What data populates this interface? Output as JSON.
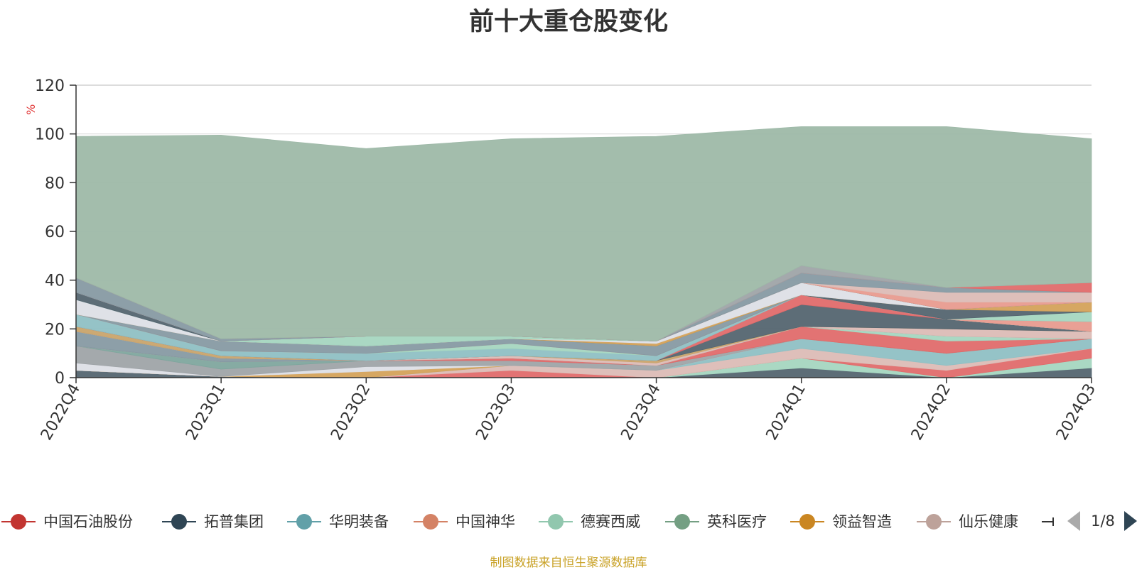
{
  "title": "前十大重仓股变化",
  "footer": "制图数据来自恒生聚源数据库",
  "legend": {
    "page_indicator": "1/8",
    "items": [
      {
        "name": "中国石油股份",
        "color": "#c23531"
      },
      {
        "name": "拓普集团",
        "color": "#2f4554"
      },
      {
        "name": "华明装备",
        "color": "#61a0a8"
      },
      {
        "name": "中国神华",
        "color": "#d48265"
      },
      {
        "name": "德赛西威",
        "color": "#91c7ae"
      },
      {
        "name": "英科医疗",
        "color": "#749f83"
      },
      {
        "name": "领益智造",
        "color": "#ca8622"
      },
      {
        "name": "仙乐健康",
        "color": "#bda29a"
      }
    ]
  },
  "chart_data": {
    "type": "area",
    "stacked": true,
    "title": "前十大重仓股变化",
    "ylabel": "%",
    "ylim": [
      0,
      120
    ],
    "yticks": [
      0,
      20,
      40,
      60,
      80,
      100,
      120
    ],
    "grid": true,
    "categories": [
      "2022Q4",
      "2023Q1",
      "2023Q2",
      "2023Q3",
      "2023Q4",
      "2024Q1",
      "2024Q2",
      "2024Q3"
    ],
    "series": [
      {
        "color": "#546570",
        "values": [
          3,
          0.5,
          0,
          0,
          0,
          4,
          0,
          4
        ]
      },
      {
        "color": "#a5d6c0",
        "values": [
          0,
          0,
          0,
          0,
          0,
          4,
          0,
          4
        ]
      },
      {
        "color": "#e06b6b",
        "values": [
          0,
          0,
          0,
          3,
          0,
          0,
          3,
          4
        ]
      },
      {
        "color": "#dcbcb6",
        "values": [
          0,
          0,
          0,
          2,
          3,
          4,
          2,
          0
        ]
      },
      {
        "color": "#8fc0c4",
        "values": [
          0,
          0,
          0,
          0,
          0,
          4,
          5,
          4
        ]
      },
      {
        "color": "#d4a25a",
        "values": [
          0,
          0,
          2.5,
          0,
          0,
          0,
          0,
          0
        ]
      },
      {
        "color": "#dddfe6",
        "values": [
          3,
          0,
          2,
          0,
          0,
          0,
          0,
          0
        ]
      },
      {
        "color": "#9fa4a8",
        "values": [
          7,
          3,
          2.5,
          2,
          2,
          0,
          0,
          0
        ]
      },
      {
        "color": "#7fa69e",
        "values": [
          0,
          3,
          0,
          0,
          0,
          0,
          0,
          0
        ]
      },
      {
        "color": "#e06b6b",
        "values": [
          0,
          0,
          0,
          1,
          0,
          5,
          5,
          0
        ]
      },
      {
        "color": "#a5d6c0",
        "values": [
          0,
          0,
          0,
          0,
          0,
          0,
          2,
          0
        ]
      },
      {
        "color": "#879aa3",
        "values": [
          6,
          1.5,
          0,
          0,
          0,
          0,
          0,
          0
        ]
      },
      {
        "color": "#dcbcb6",
        "values": [
          0,
          0,
          0,
          1,
          1,
          0,
          3,
          3
        ]
      },
      {
        "color": "#c9a46c",
        "values": [
          2,
          1,
          0,
          0,
          1,
          0,
          0,
          0
        ]
      },
      {
        "color": "#546570",
        "values": [
          0,
          0,
          0,
          0,
          0,
          9,
          4,
          0
        ]
      },
      {
        "color": "#e06b6b",
        "values": [
          0,
          0,
          0,
          0,
          0,
          4,
          0,
          0
        ]
      },
      {
        "color": "#8fc0c4",
        "values": [
          5,
          2,
          3,
          3,
          2,
          0,
          0,
          0
        ]
      },
      {
        "color": "#a5d6c0",
        "values": [
          0,
          0,
          0,
          2,
          0,
          0,
          0,
          0
        ]
      },
      {
        "color": "#e89b8f",
        "values": [
          0,
          0,
          0,
          0,
          0,
          0,
          0,
          4
        ]
      },
      {
        "color": "#879aa3",
        "values": [
          0,
          4,
          3,
          2,
          4,
          0,
          0,
          0
        ]
      },
      {
        "color": "#a5d6c0",
        "values": [
          0,
          0,
          0,
          0,
          0,
          0,
          0,
          4
        ]
      },
      {
        "color": "#546570",
        "values": [
          0,
          0,
          0,
          0,
          0,
          0,
          4,
          0
        ]
      },
      {
        "color": "#d4a25a",
        "values": [
          0,
          0,
          0,
          0,
          1,
          0,
          0,
          4
        ]
      },
      {
        "color": "#dddfe6",
        "values": [
          6,
          0,
          0,
          0,
          1,
          5,
          0,
          0
        ]
      },
      {
        "color": "#a5d6c0",
        "values": [
          0,
          0,
          4,
          1,
          0,
          0,
          0,
          0
        ]
      },
      {
        "color": "#546570",
        "values": [
          3,
          0,
          0,
          0,
          0,
          0,
          0,
          0
        ]
      },
      {
        "color": "#e89b8f",
        "values": [
          0,
          0,
          0,
          0,
          0,
          0,
          3,
          0
        ]
      },
      {
        "color": "#dcbcb6",
        "values": [
          0,
          0,
          0,
          0,
          0,
          0,
          4,
          4
        ]
      },
      {
        "color": "#879aa3",
        "values": [
          6,
          1,
          0,
          0,
          0,
          4,
          2,
          0
        ]
      },
      {
        "color": "#e06b6b",
        "values": [
          0,
          0,
          0,
          0,
          0,
          0,
          0,
          4
        ]
      },
      {
        "color": "#9fa4a8",
        "values": [
          0,
          0,
          0,
          0,
          0,
          3,
          0,
          0
        ]
      },
      {
        "color": "#9eb9a8",
        "values": [
          58,
          83.5,
          77,
          81,
          84,
          57,
          66,
          59
        ]
      }
    ]
  }
}
